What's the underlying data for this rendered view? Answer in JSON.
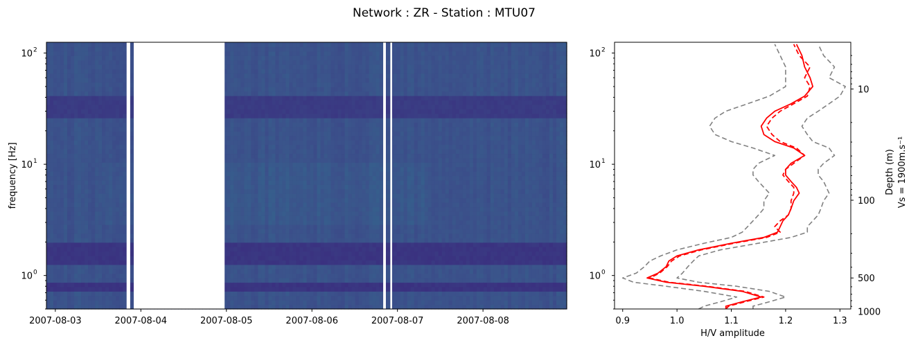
{
  "figure": {
    "title": "Network : ZR - Station : MTU07"
  },
  "chart_data": [
    {
      "type": "heatmap",
      "ylabel": "frequency [Hz]",
      "xlabel": "",
      "yscale": "log",
      "ylim": [
        0.5,
        125
      ],
      "xlim": [
        "2007-08-02 21:30",
        "2007-08-08 23:30"
      ],
      "x_ticks": [
        "2007-08-03",
        "2007-08-04",
        "2007-08-05",
        "2007-08-06",
        "2007-08-07",
        "2007-08-08"
      ],
      "y_ticks": [
        {
          "value": 1,
          "base": "10",
          "exp": "0"
        },
        {
          "value": 10,
          "base": "10",
          "exp": "1"
        },
        {
          "value": 100,
          "base": "10",
          "exp": "2"
        }
      ],
      "data_gaps": [
        [
          "2007-08-03 20:00",
          "2007-08-03 21:00"
        ],
        [
          "2007-08-03 22:00",
          "2007-08-04 23:30"
        ],
        [
          "2007-08-06 20:00",
          "2007-08-06 20:45"
        ],
        [
          "2007-08-06 22:00",
          "2007-08-06 22:30"
        ]
      ],
      "colormap": {
        "low": "#3a2c7e",
        "mid": "#3b528b",
        "high": "#2a7b8e"
      },
      "bands": [
        {
          "f_low": 0.72,
          "f_high": 0.9,
          "level": 0.1
        },
        {
          "f_low": 1.3,
          "f_high": 2.0,
          "level": 0.12
        },
        {
          "f_low": 25,
          "f_high": 40,
          "level": 0.2
        }
      ]
    },
    {
      "type": "line",
      "xlabel": "H/V amplitude",
      "ylabel": "",
      "yscale": "log",
      "xlim": [
        0.885,
        1.32
      ],
      "ylim": [
        0.5,
        125
      ],
      "x_ticks": [
        "0.9",
        "1.0",
        "1.1",
        "1.2",
        "1.3"
      ],
      "y_ticks": [
        {
          "value": 1,
          "base": "10",
          "exp": "0"
        },
        {
          "value": 10,
          "base": "10",
          "exp": "1"
        },
        {
          "value": 100,
          "base": "10",
          "exp": "2"
        }
      ],
      "secondary_axis": {
        "label_line1": "Depth (m)",
        "label_line2": "Vs = 1900m.s⁻¹",
        "velocity": 1900,
        "ticks": [
          "10",
          "100",
          "500",
          "1000"
        ]
      },
      "series": [
        {
          "style": "solid",
          "color": "#ff0000",
          "x": [
            1.09,
            1.09,
            1.12,
            1.155,
            1.12,
            1.05,
            0.98,
            0.945,
            0.965,
            0.98,
            0.985,
            1.0,
            1.04,
            1.1,
            1.16,
            1.185,
            1.19,
            1.195,
            1.205,
            1.21,
            1.215,
            1.225,
            1.22,
            1.21,
            1.2,
            1.2,
            1.21,
            1.235,
            1.215,
            1.18,
            1.16,
            1.155,
            1.165,
            1.18,
            1.21,
            1.235,
            1.25,
            1.245,
            1.235,
            1.23,
            1.22
          ],
          "y": [
            0.5,
            0.53,
            0.58,
            0.64,
            0.72,
            0.8,
            0.87,
            0.95,
            1.05,
            1.2,
            1.35,
            1.5,
            1.7,
            1.95,
            2.2,
            2.45,
            2.75,
            3.1,
            3.5,
            4.0,
            4.7,
            5.5,
            6.2,
            7.0,
            8.0,
            9.0,
            10.2,
            12.0,
            14.0,
            16.0,
            18.5,
            22.0,
            26.0,
            30.0,
            35.0,
            41.0,
            50.0,
            60.0,
            75.0,
            95.0,
            120.0
          ]
        },
        {
          "style": "dashed",
          "color": "#ff0000",
          "x": [
            1.09,
            1.095,
            1.125,
            1.16,
            1.125,
            1.055,
            0.985,
            0.95,
            0.968,
            0.982,
            0.99,
            1.005,
            1.045,
            1.105,
            1.165,
            1.19,
            1.18,
            1.19,
            1.205,
            1.21,
            1.21,
            1.215,
            1.215,
            1.205,
            1.195,
            1.2,
            1.215,
            1.235,
            1.22,
            1.19,
            1.175,
            1.165,
            1.175,
            1.19,
            1.215,
            1.24,
            1.245,
            1.235,
            1.245,
            1.225,
            1.215
          ],
          "y": [
            0.5,
            0.53,
            0.58,
            0.64,
            0.72,
            0.8,
            0.87,
            0.95,
            1.05,
            1.2,
            1.35,
            1.5,
            1.7,
            1.95,
            2.2,
            2.45,
            2.75,
            3.1,
            3.5,
            4.0,
            4.7,
            5.5,
            6.2,
            7.0,
            8.0,
            9.0,
            10.2,
            12.0,
            14.0,
            16.0,
            18.5,
            22.0,
            26.0,
            30.0,
            35.0,
            41.0,
            50.0,
            60.0,
            75.0,
            95.0,
            120.0
          ]
        },
        {
          "style": "dashed",
          "color": "#808080",
          "x": [
            1.04,
            1.05,
            1.08,
            1.11,
            1.05,
            0.98,
            0.92,
            0.9,
            0.925,
            0.94,
            0.95,
            0.97,
            1.0,
            1.05,
            1.1,
            1.12,
            1.13,
            1.14,
            1.15,
            1.16,
            1.16,
            1.17,
            1.16,
            1.15,
            1.14,
            1.14,
            1.15,
            1.18,
            1.14,
            1.1,
            1.07,
            1.06,
            1.07,
            1.09,
            1.13,
            1.17,
            1.2,
            1.2,
            1.2,
            1.19,
            1.18
          ],
          "y": [
            0.5,
            0.53,
            0.58,
            0.64,
            0.72,
            0.8,
            0.87,
            0.95,
            1.05,
            1.2,
            1.35,
            1.5,
            1.7,
            1.95,
            2.2,
            2.45,
            2.75,
            3.1,
            3.5,
            4.0,
            4.7,
            5.5,
            6.2,
            7.0,
            8.0,
            9.0,
            10.2,
            12.0,
            14.0,
            16.0,
            18.5,
            22.0,
            26.0,
            30.0,
            35.0,
            41.0,
            50.0,
            60.0,
            75.0,
            95.0,
            120.0
          ]
        },
        {
          "style": "dashed",
          "color": "#808080",
          "x": [
            1.14,
            1.14,
            1.17,
            1.2,
            1.17,
            1.11,
            1.04,
            1.0,
            1.01,
            1.02,
            1.03,
            1.04,
            1.08,
            1.15,
            1.21,
            1.24,
            1.24,
            1.25,
            1.26,
            1.265,
            1.27,
            1.28,
            1.275,
            1.27,
            1.26,
            1.26,
            1.27,
            1.29,
            1.28,
            1.25,
            1.24,
            1.23,
            1.24,
            1.26,
            1.28,
            1.3,
            1.31,
            1.28,
            1.29,
            1.27,
            1.26
          ],
          "y": [
            0.5,
            0.53,
            0.58,
            0.64,
            0.72,
            0.8,
            0.87,
            0.95,
            1.05,
            1.2,
            1.35,
            1.5,
            1.7,
            1.95,
            2.2,
            2.45,
            2.75,
            3.1,
            3.5,
            4.0,
            4.7,
            5.5,
            6.2,
            7.0,
            8.0,
            9.0,
            10.2,
            12.0,
            14.0,
            16.0,
            18.5,
            22.0,
            26.0,
            30.0,
            35.0,
            41.0,
            50.0,
            60.0,
            75.0,
            95.0,
            120.0
          ]
        }
      ]
    }
  ]
}
